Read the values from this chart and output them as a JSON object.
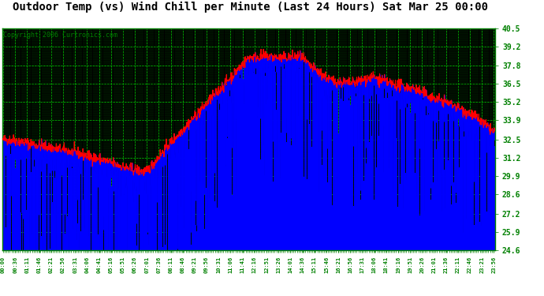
{
  "title": "Outdoor Temp (vs) Wind Chill per Minute (Last 24 Hours) Sat Mar 25 00:00",
  "copyright": "Copyright 2006 Curtronics.com",
  "yticks": [
    24.6,
    25.9,
    27.2,
    28.6,
    29.9,
    31.2,
    32.5,
    33.9,
    35.2,
    36.5,
    37.8,
    39.2,
    40.5
  ],
  "ymin": 24.6,
  "ymax": 40.5,
  "bg_color": "#000000",
  "outer_bg": "#ffffff",
  "red_color": "#ff0000",
  "blue_color": "#0000ff",
  "grid_color": "#00cc00",
  "title_fontsize": 10,
  "copyright_fontsize": 6,
  "xtick_fontsize": 5,
  "ytick_fontsize": 7,
  "xtick_labels": [
    "00:00",
    "00:36",
    "01:11",
    "01:46",
    "02:21",
    "02:56",
    "03:31",
    "04:06",
    "04:41",
    "05:16",
    "05:51",
    "06:26",
    "07:01",
    "07:36",
    "08:11",
    "08:46",
    "09:21",
    "09:56",
    "10:31",
    "11:06",
    "11:41",
    "12:16",
    "12:51",
    "13:26",
    "14:01",
    "14:36",
    "15:11",
    "15:46",
    "16:21",
    "16:56",
    "17:31",
    "18:06",
    "18:41",
    "19:16",
    "19:51",
    "20:26",
    "21:01",
    "21:36",
    "22:11",
    "22:46",
    "23:21",
    "23:56"
  ]
}
